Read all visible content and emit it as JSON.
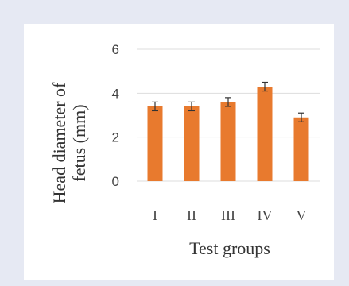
{
  "chart_data": {
    "type": "bar",
    "title": "",
    "xlabel": "Test groups",
    "ylabel": "Head diameter of fetus (mm)",
    "ylabel_lines": [
      "Head diameter of",
      "fetus (mm)"
    ],
    "categories": [
      "I",
      "II",
      "III",
      "IV",
      "V"
    ],
    "values": [
      3.4,
      3.4,
      3.6,
      4.3,
      2.9
    ],
    "errors": [
      0.2,
      0.2,
      0.2,
      0.2,
      0.2
    ],
    "ylim": [
      0,
      6
    ],
    "yticks": [
      "0",
      "2",
      "4",
      "6"
    ],
    "grid": true,
    "legend": "none",
    "colors": {
      "bar": "#e87a2e",
      "grid": "#dddddd",
      "error": "#333333",
      "background": "#e6e9f3",
      "panel": "#ffffff"
    }
  }
}
